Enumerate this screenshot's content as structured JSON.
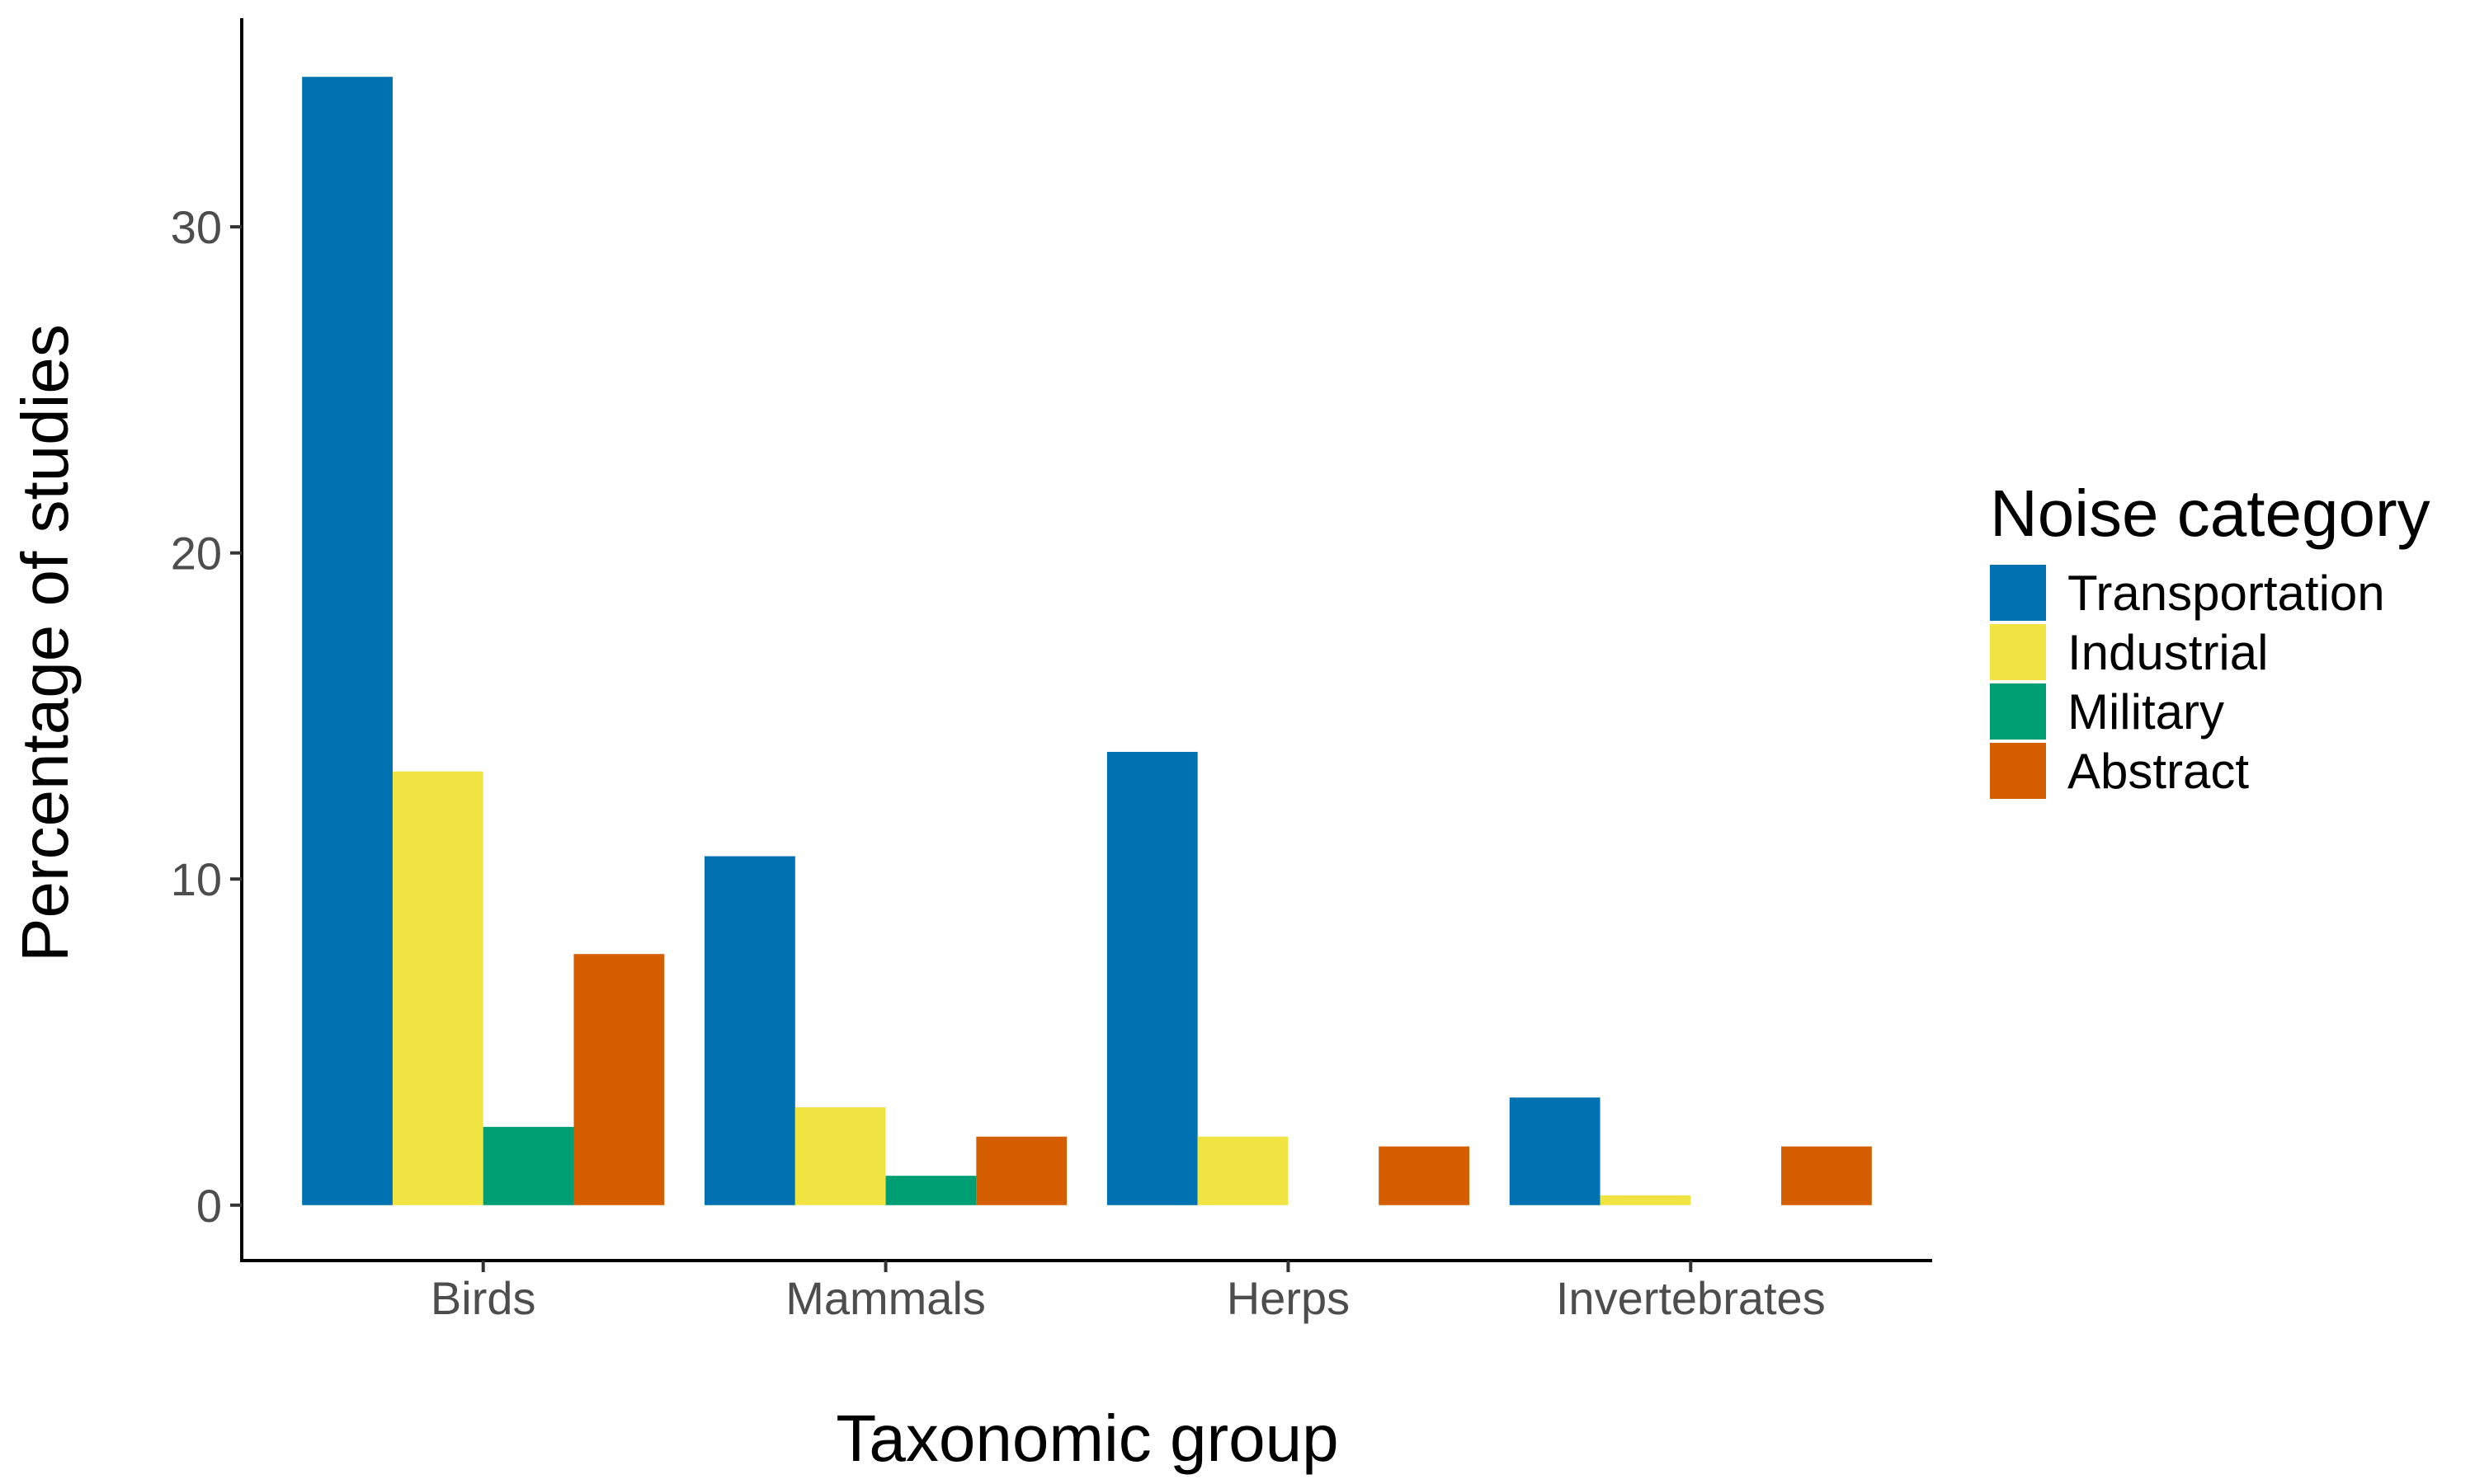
{
  "chart_data": {
    "type": "bar",
    "title": "",
    "xlabel": "Taxonomic group",
    "ylabel": "Percentage of studies",
    "categories": [
      "Birds",
      "Mammals",
      "Herps",
      "Invertebrates"
    ],
    "series": [
      {
        "name": "Transportation",
        "color": "#0072B2",
        "values": [
          34.6,
          10.7,
          13.9,
          3.3
        ]
      },
      {
        "name": "Industrial",
        "color": "#F0E442",
        "values": [
          13.3,
          3.0,
          2.1,
          0.3
        ]
      },
      {
        "name": "Military",
        "color": "#009E73",
        "values": [
          2.4,
          0.9,
          0,
          0
        ]
      },
      {
        "name": "Abstract",
        "color": "#D55E00",
        "values": [
          7.7,
          2.1,
          1.8,
          1.8
        ]
      }
    ],
    "ylim": [
      -1.7,
      36.4
    ],
    "yticks": [
      0,
      10,
      20,
      30
    ],
    "grid": false,
    "legend": {
      "title": "Noise category",
      "placement": "right"
    }
  }
}
